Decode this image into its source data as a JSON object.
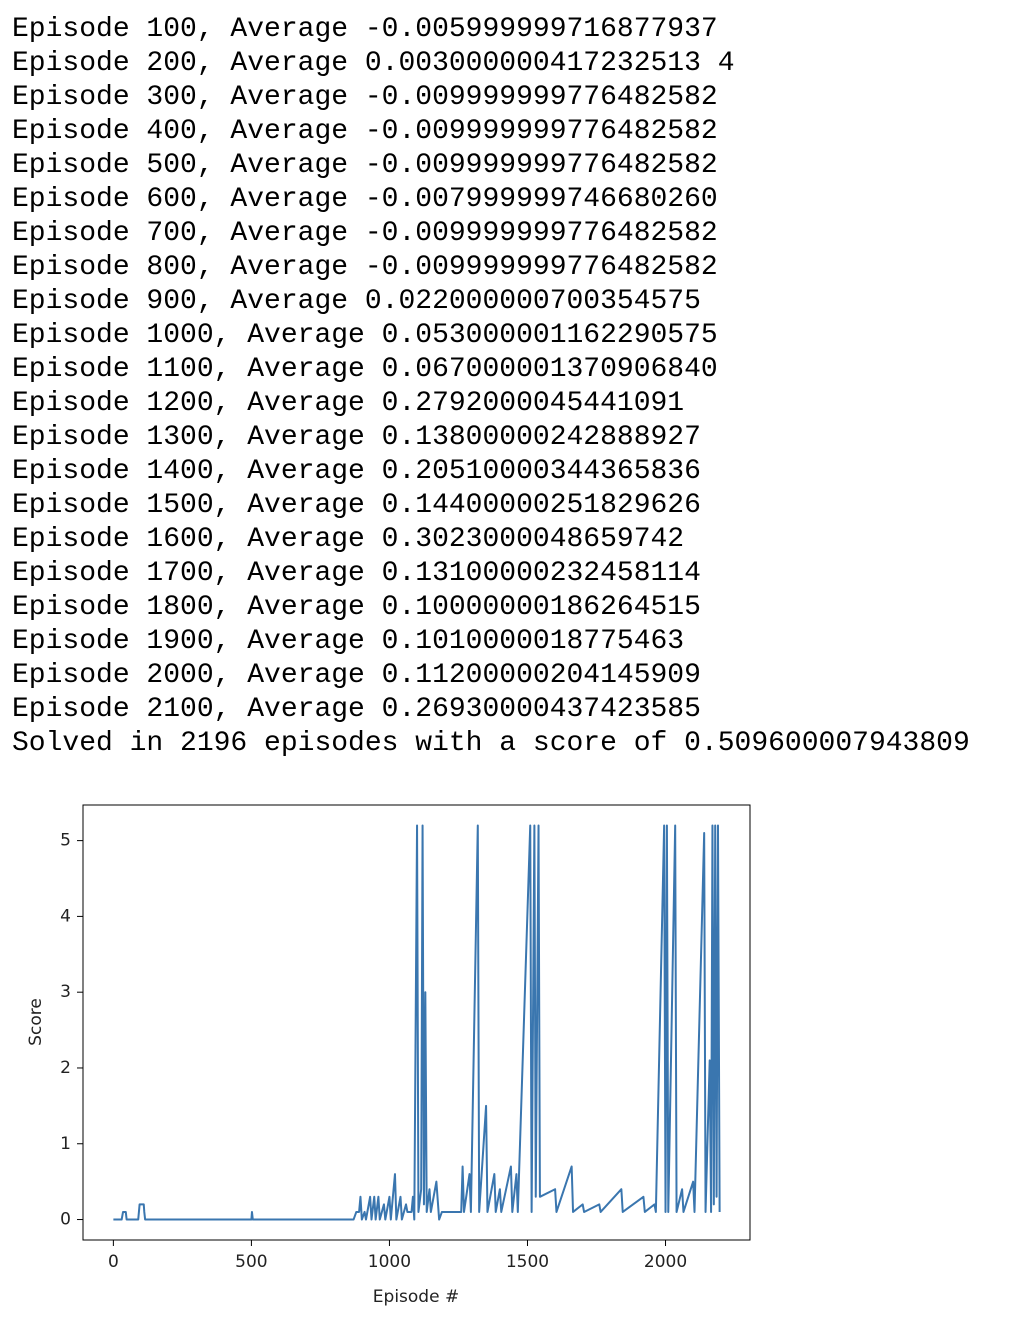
{
  "log_lines": [
    "Episode 100, Average -0.005999999716877937",
    "Episode 200, Average 0.003000000417232513 4",
    "Episode 300, Average -0.009999999776482582",
    "Episode 400, Average -0.009999999776482582",
    "Episode 500, Average -0.009999999776482582",
    "Episode 600, Average -0.007999999746680260",
    "Episode 700, Average -0.009999999776482582",
    "Episode 800, Average -0.009999999776482582",
    "Episode 900, Average 0.022000000700354575",
    "Episode 1000, Average 0.053000001162290575",
    "Episode 1100, Average 0.067000001370906840",
    "Episode 1200, Average 0.2792000045441091",
    "Episode 1300, Average 0.13800000242888927",
    "Episode 1400, Average 0.20510000344365836",
    "Episode 1500, Average 0.14400000251829626",
    "Episode 1600, Average 0.3023000048659742",
    "Episode 1700, Average 0.13100000232458114",
    "Episode 1800, Average 0.10000000186264515",
    "Episode 1900, Average 0.1010000018775463",
    "Episode 2000, Average 0.11200000204145909",
    "Episode 2100, Average 0.26930000437423585",
    "Solved in 2196 episodes with a score of 0.509600007943809"
  ],
  "chart_data": {
    "type": "line",
    "xlabel": "Episode #",
    "ylabel": "Score",
    "grid": false,
    "xlim": [
      -110,
      2306
    ],
    "ylim": [
      -0.27,
      5.47
    ],
    "xticks": [
      0,
      500,
      1000,
      1500,
      2000
    ],
    "yticks": [
      0,
      1,
      2,
      3,
      4,
      5
    ],
    "series": [
      {
        "color": "#3a76af",
        "x": [
          0,
          30,
          35,
          45,
          48,
          90,
          95,
          110,
          112,
          115,
          500,
          502,
          505,
          870,
          880,
          890,
          895,
          900,
          910,
          915,
          930,
          935,
          945,
          950,
          960,
          965,
          980,
          985,
          1000,
          1005,
          1020,
          1025,
          1040,
          1045,
          1060,
          1065,
          1080,
          1085,
          1090,
          1100,
          1105,
          1115,
          1120,
          1125,
          1130,
          1135,
          1145,
          1150,
          1170,
          1180,
          1190,
          1260,
          1265,
          1270,
          1290,
          1295,
          1320,
          1325,
          1350,
          1355,
          1380,
          1385,
          1400,
          1405,
          1440,
          1445,
          1460,
          1465,
          1510,
          1515,
          1525,
          1530,
          1540,
          1545,
          1600,
          1605,
          1660,
          1665,
          1700,
          1705,
          1760,
          1765,
          1840,
          1845,
          1920,
          1925,
          1960,
          1965,
          1995,
          2000,
          2005,
          2010,
          2035,
          2040,
          2060,
          2065,
          2100,
          2105,
          2140,
          2145,
          2160,
          2165,
          2170,
          2175,
          2180,
          2185,
          2190,
          2196
        ],
        "values": [
          0,
          0,
          0.1,
          0.1,
          0,
          0,
          0.2,
          0.2,
          0.1,
          0,
          0,
          0.1,
          0,
          0,
          0.1,
          0.1,
          0.3,
          0,
          0.1,
          0,
          0.3,
          0,
          0.3,
          0,
          0.3,
          0,
          0.2,
          0,
          0.3,
          0,
          0.6,
          0,
          0.3,
          0,
          0.2,
          0.1,
          0.1,
          0.3,
          0,
          5.2,
          0.1,
          0.4,
          5.2,
          0.2,
          3,
          0.1,
          0.4,
          0.1,
          0.5,
          0,
          0.1,
          0.1,
          0.7,
          0.1,
          0.6,
          0.1,
          5.2,
          0.1,
          1.5,
          0.1,
          0.6,
          0.1,
          0.4,
          0.1,
          0.7,
          0.1,
          0.6,
          0.1,
          5.2,
          0.1,
          5.2,
          0.3,
          5.2,
          0.3,
          0.4,
          0.1,
          0.7,
          0.1,
          0.2,
          0.1,
          0.2,
          0.1,
          0.4,
          0.1,
          0.3,
          0.1,
          0.2,
          0.1,
          5.2,
          0.1,
          5.2,
          0.1,
          5.2,
          0.1,
          0.4,
          0.1,
          0.5,
          0.1,
          5.1,
          0.1,
          2.1,
          0.1,
          5.2,
          0.2,
          5.2,
          0.3,
          5.2,
          0.1
        ]
      }
    ]
  }
}
